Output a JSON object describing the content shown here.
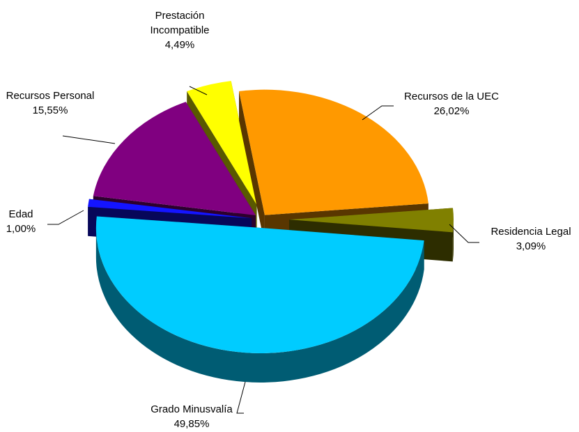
{
  "chart_data": {
    "type": "pie",
    "categories": [
      "Recursos de la UEC",
      "Residencia Legal",
      "Grado Minusvalía",
      "Edad",
      "Recursos Personal",
      "Prestación Incompatible"
    ],
    "values": [
      26.02,
      3.09,
      49.85,
      1.0,
      15.55,
      4.49
    ],
    "value_labels": [
      "26,02%",
      "3,09%",
      "49,85%",
      "1,00%",
      "15,55%",
      "4,49%"
    ],
    "colors": [
      "#FF9900",
      "#808000",
      "#00CCFF",
      "#1414FF",
      "#800080",
      "#FFFF00"
    ]
  }
}
